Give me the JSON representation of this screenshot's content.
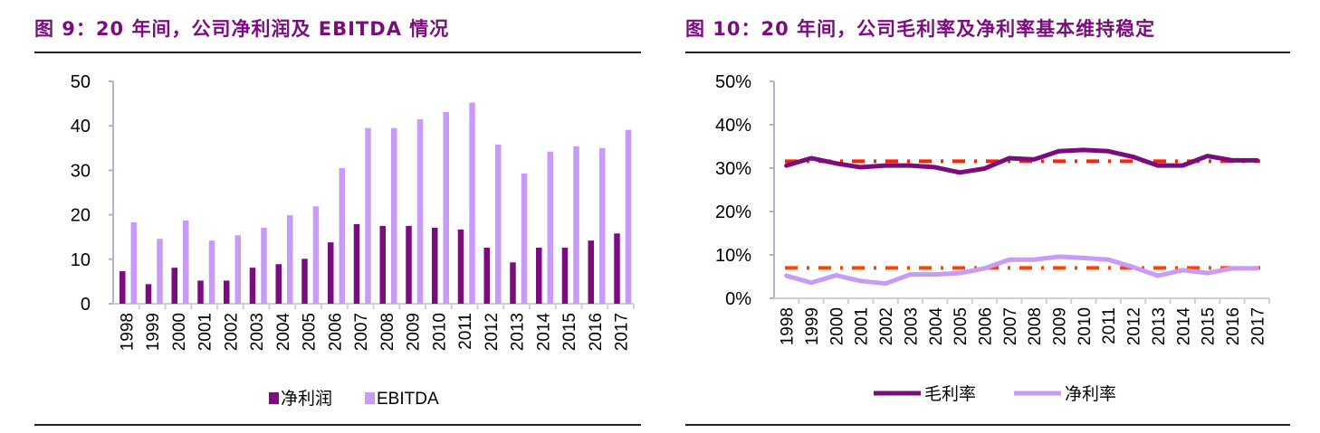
{
  "left": {
    "title": "图 9：20 年间，公司净利润及 EBITDA 情况"
  },
  "right": {
    "title": "图 10：20 年间，公司毛利率及净利率基本维持稳定"
  },
  "chart_data": [
    {
      "type": "bar",
      "categories": [
        "1998",
        "1999",
        "2000",
        "2001",
        "2002",
        "2003",
        "2004",
        "2005",
        "2006",
        "2007",
        "2008",
        "2009",
        "2010",
        "2011",
        "2012",
        "2013",
        "2014",
        "2015",
        "2016",
        "2017"
      ],
      "series": [
        {
          "name": "净利润",
          "color": "#7b0c7e",
          "values": [
            7.3,
            4.4,
            8.1,
            5.2,
            5.2,
            8.1,
            8.9,
            10.1,
            13.8,
            17.9,
            17.5,
            17.5,
            17.1,
            16.7,
            12.6,
            9.3,
            12.6,
            12.6,
            14.2,
            15.8
          ]
        },
        {
          "name": "EBITDA",
          "color": "#c89bf7",
          "values": [
            18.3,
            14.6,
            18.7,
            14.2,
            15.4,
            17.1,
            19.9,
            21.9,
            30.5,
            39.5,
            39.5,
            41.5,
            43.1,
            45.2,
            35.8,
            29.3,
            34.2,
            35.4,
            35.0,
            39.1
          ]
        }
      ],
      "ylim": [
        0,
        50
      ],
      "yticks": [
        "0",
        "10",
        "20",
        "30",
        "40",
        "50"
      ],
      "legend": "bottom",
      "grid": false
    },
    {
      "type": "line",
      "categories": [
        "1998",
        "1999",
        "2000",
        "2001",
        "2002",
        "2003",
        "2004",
        "2005",
        "2006",
        "2007",
        "2008",
        "2009",
        "2010",
        "2011",
        "2012",
        "2013",
        "2014",
        "2015",
        "2016",
        "2017"
      ],
      "series": [
        {
          "name": "毛利率",
          "color": "#7b0c7e",
          "values": [
            30.6,
            32.3,
            31.1,
            30.2,
            30.6,
            30.6,
            30.2,
            29.0,
            29.9,
            32.3,
            32.0,
            33.9,
            34.2,
            33.9,
            32.6,
            30.6,
            30.6,
            32.8,
            31.8,
            31.8
          ]
        },
        {
          "name": "净利率",
          "color": "#c89bf7",
          "values": [
            5.2,
            3.6,
            5.3,
            4.0,
            3.4,
            5.5,
            5.5,
            5.8,
            6.9,
            8.9,
            8.9,
            9.6,
            9.3,
            8.9,
            7.2,
            5.2,
            6.5,
            5.8,
            6.9,
            6.9
          ]
        }
      ],
      "reference_lines": [
        {
          "value": 31.6,
          "color": "#ff2200",
          "style": "dash-dot"
        },
        {
          "value": 7.0,
          "color": "#ff4400",
          "style": "dash-dot"
        }
      ],
      "ylim": [
        0,
        50
      ],
      "yticks": [
        "0%",
        "10%",
        "20%",
        "30%",
        "40%",
        "50%"
      ],
      "legend": "bottom",
      "grid": false
    }
  ]
}
